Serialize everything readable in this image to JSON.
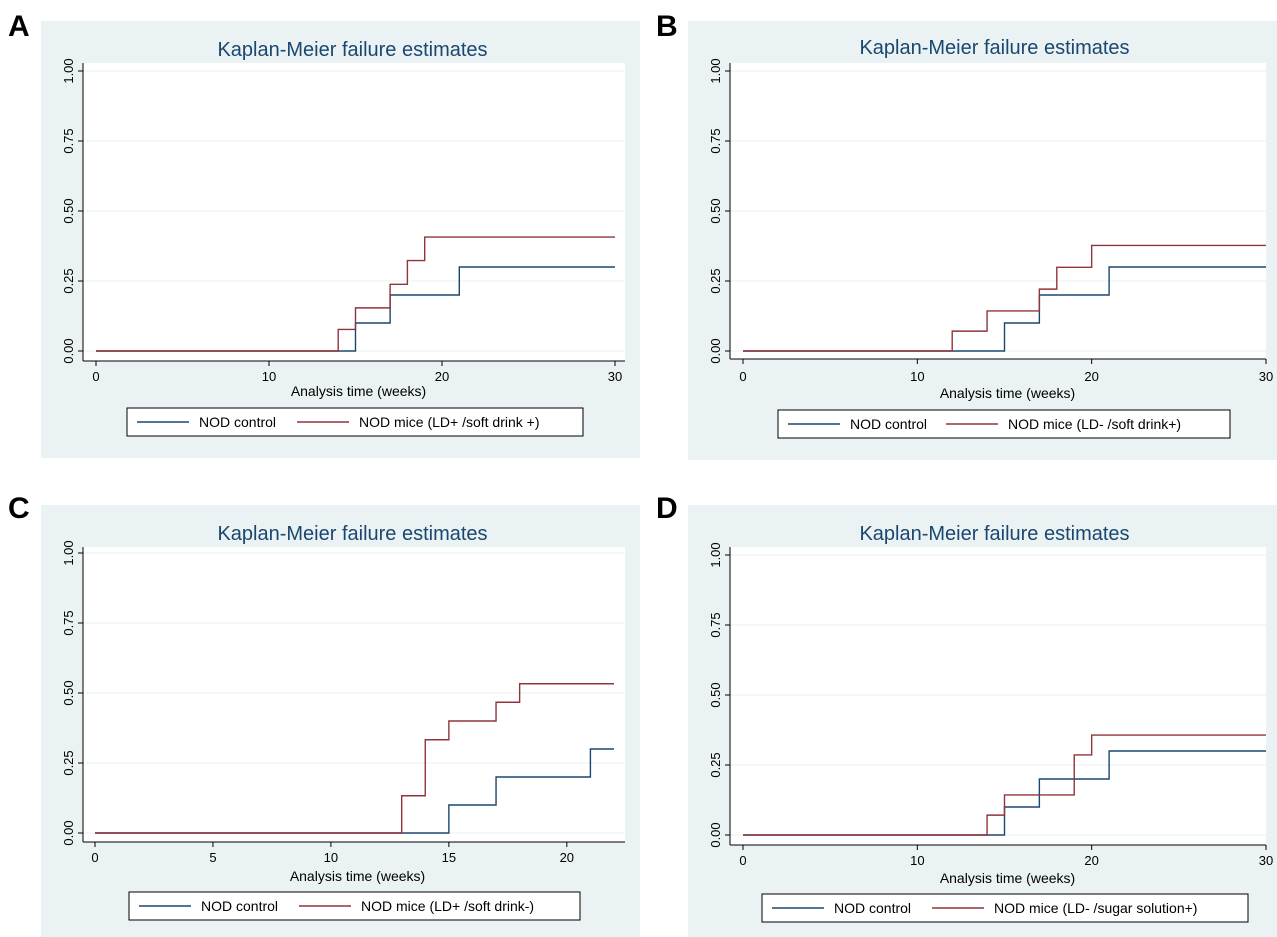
{
  "panels": [
    {
      "letter": "A",
      "chart_data": {
        "type": "line",
        "title": "Kaplan-Meier failure estimates",
        "xlabel": "Analysis time (weeks)",
        "ylabel": "",
        "xlim": [
          0,
          30
        ],
        "ylim": [
          0,
          1
        ],
        "xticks": [
          0,
          10,
          20,
          30
        ],
        "yticks": [
          "0.00",
          "0.25",
          "0.50",
          "0.75",
          "1.00"
        ],
        "grid": true,
        "legend": "bottom",
        "step": true,
        "series": [
          {
            "name": "NOD control",
            "color": "#1a476f",
            "x": [
              0,
              15,
              17,
              21,
              30
            ],
            "y": [
              0,
              0.1,
              0.2,
              0.3,
              0.3
            ]
          },
          {
            "name": "NOD mice (LD+ /soft drink +)",
            "color": "#90353b",
            "x": [
              0,
              14,
              15,
              17,
              18,
              19,
              30
            ],
            "y": [
              0,
              0.077,
              0.154,
              0.238,
              0.323,
              0.407,
              0.407
            ]
          }
        ]
      }
    },
    {
      "letter": "B",
      "chart_data": {
        "type": "line",
        "title": "Kaplan-Meier failure estimates",
        "xlabel": "Analysis time (weeks)",
        "ylabel": "",
        "xlim": [
          0,
          30
        ],
        "ylim": [
          0,
          1
        ],
        "xticks": [
          0,
          10,
          20,
          30
        ],
        "yticks": [
          "0.00",
          "0.25",
          "0.50",
          "0.75",
          "1.00"
        ],
        "grid": true,
        "legend": "bottom",
        "step": true,
        "series": [
          {
            "name": "NOD control",
            "color": "#1a476f",
            "x": [
              0,
              15,
              17,
              21,
              30
            ],
            "y": [
              0,
              0.1,
              0.2,
              0.3,
              0.3
            ]
          },
          {
            "name": "NOD mice (LD- /soft drink+)",
            "color": "#90353b",
            "x": [
              0,
              12,
              14,
              17,
              18,
              20,
              30
            ],
            "y": [
              0,
              0.071,
              0.143,
              0.221,
              0.299,
              0.377,
              0.377
            ]
          }
        ]
      }
    },
    {
      "letter": "C",
      "chart_data": {
        "type": "line",
        "title": "Kaplan-Meier failure estimates",
        "xlabel": "Analysis time (weeks)",
        "ylabel": "",
        "xlim": [
          0,
          22
        ],
        "ylim": [
          0,
          1
        ],
        "xticks": [
          0,
          5,
          10,
          15,
          20
        ],
        "yticks": [
          "0.00",
          "0.25",
          "0.50",
          "0.75",
          "1.00"
        ],
        "grid": true,
        "legend": "bottom",
        "step": true,
        "series": [
          {
            "name": "NOD control",
            "color": "#1a476f",
            "x": [
              0,
              15,
              17,
              21,
              22
            ],
            "y": [
              0,
              0.1,
              0.2,
              0.3,
              0.3
            ]
          },
          {
            "name": "NOD mice (LD+ /soft drink-)",
            "color": "#90353b",
            "x": [
              0,
              13,
              14,
              15,
              17,
              18,
              22
            ],
            "y": [
              0,
              0.133,
              0.333,
              0.4,
              0.467,
              0.533,
              0.533
            ]
          }
        ]
      }
    },
    {
      "letter": "D",
      "chart_data": {
        "type": "line",
        "title": "Kaplan-Meier failure estimates",
        "xlabel": "Analysis time (weeks)",
        "ylabel": "",
        "xlim": [
          0,
          30
        ],
        "ylim": [
          0,
          1
        ],
        "xticks": [
          0,
          10,
          20,
          30
        ],
        "yticks": [
          "0.00",
          "0.25",
          "0.50",
          "0.75",
          "1.00"
        ],
        "grid": true,
        "legend": "bottom",
        "step": true,
        "series": [
          {
            "name": "NOD control",
            "color": "#1a476f",
            "x": [
              0,
              15,
              17,
              21,
              30
            ],
            "y": [
              0,
              0.1,
              0.2,
              0.3,
              0.3
            ]
          },
          {
            "name": "NOD mice (LD- /sugar solution+)",
            "color": "#90353b",
            "x": [
              0,
              14,
              15,
              19,
              20,
              30
            ],
            "y": [
              0,
              0.071,
              0.143,
              0.286,
              0.357,
              0.357
            ]
          }
        ]
      }
    }
  ]
}
